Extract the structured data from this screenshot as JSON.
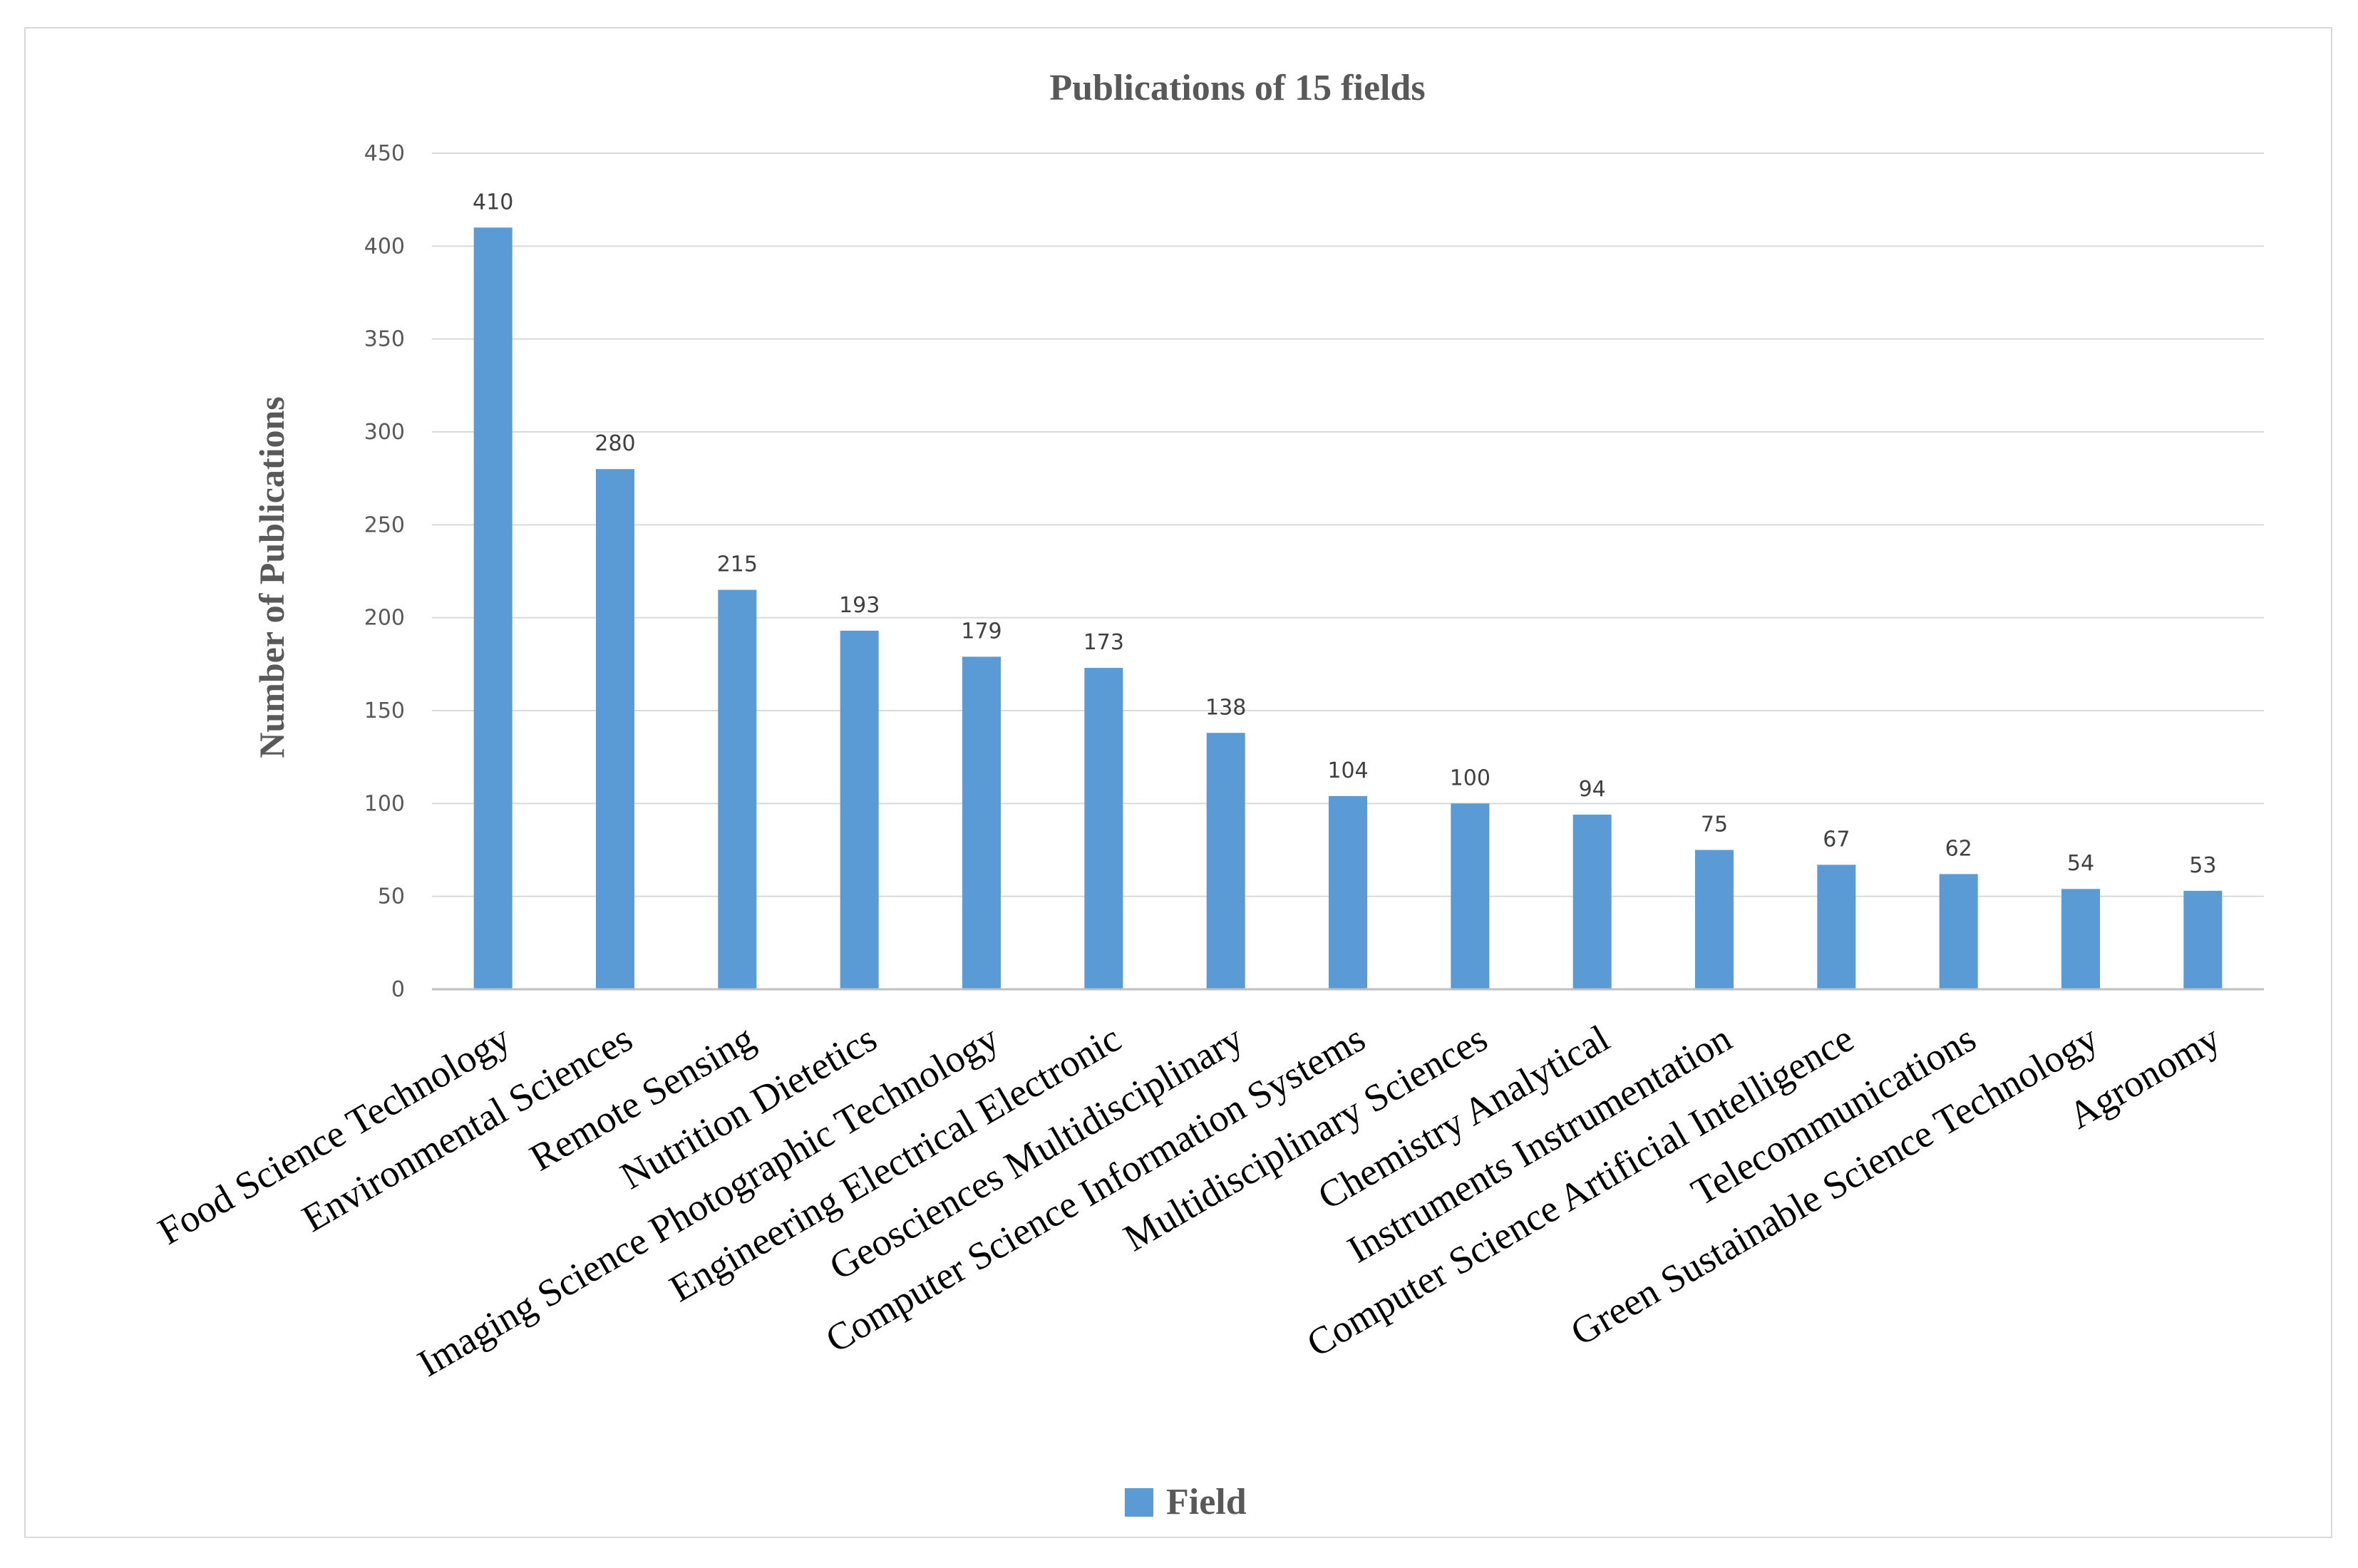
{
  "chart_data": {
    "type": "bar",
    "title": "Publications of 15 fields",
    "xlabel": "",
    "ylabel": "Number of Publications",
    "ylim": [
      0,
      450
    ],
    "yticks": [
      0,
      50,
      100,
      150,
      200,
      250,
      300,
      350,
      400,
      450
    ],
    "grid": true,
    "legend_position": "bottom-center",
    "bar_color": "#5b9bd5",
    "categories": [
      "Food Science Technology",
      "Environmental Sciences",
      "Remote Sensing",
      "Nutrition Dietetics",
      "Imaging Science Photographic Technology",
      "Engineering Electrical Electronic",
      "Geosciences Multidisciplinary",
      "Computer Science Information Systems",
      "Multidisciplinary Sciences",
      "Chemistry Analytical",
      "Instruments Instrumentation",
      "Computer Science Artificial Intelligence",
      "Telecommunications",
      "Green Sustainable Science Technology",
      "Agronomy"
    ],
    "series": [
      {
        "name": "Field",
        "values": [
          410,
          280,
          215,
          193,
          179,
          173,
          138,
          104,
          100,
          94,
          75,
          67,
          62,
          54,
          53
        ]
      }
    ]
  }
}
